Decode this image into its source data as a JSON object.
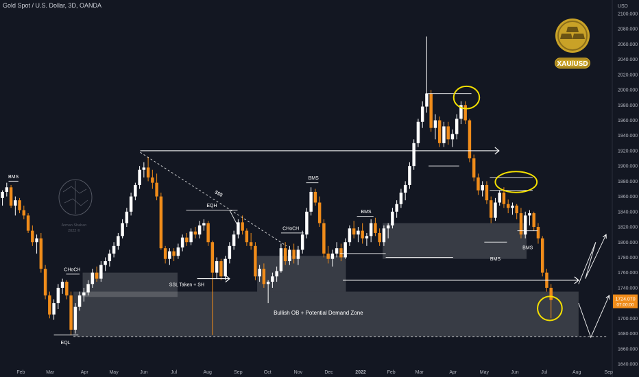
{
  "title": "Gold Spot / U.S. Dollar, 3D, OANDA",
  "currency": "USD",
  "logo": {
    "text": "XAU/USD",
    "coin_color": "#c9a227",
    "inner_color": "#8a6d1a"
  },
  "watermark": {
    "line1": "Arman Shaban",
    "line2": "2022 ©"
  },
  "colors": {
    "background": "#131722",
    "bull": "#ffffff",
    "bear": "#f08c1a",
    "zone": "#ffffff",
    "axis_text": "#b2b5be",
    "highlight": "#f5e000",
    "price_tag": "#f08c1a"
  },
  "chart_data": {
    "type": "candlestick",
    "ylabel": "USD",
    "ylim": [
      1640,
      2120
    ],
    "xlim": [
      0,
      100
    ],
    "y_ticks": [
      1640,
      1660,
      1680,
      1700,
      1720,
      1740,
      1760,
      1780,
      1800,
      1820,
      1840,
      1860,
      1880,
      1900,
      1920,
      1940,
      1960,
      1980,
      2000,
      2020,
      2040,
      2060,
      2080,
      2100
    ],
    "x_ticks": [
      {
        "label": "Feb",
        "x": 3.4
      },
      {
        "label": "Mar",
        "x": 8.2
      },
      {
        "label": "Apr",
        "x": 13.8
      },
      {
        "label": "May",
        "x": 18.6
      },
      {
        "label": "Jun",
        "x": 23.5
      },
      {
        "label": "Jul",
        "x": 28.4
      },
      {
        "label": "Aug",
        "x": 33.9
      },
      {
        "label": "Sep",
        "x": 38.9
      },
      {
        "label": "Oct",
        "x": 43.7
      },
      {
        "label": "Nov",
        "x": 48.7
      },
      {
        "label": "Dec",
        "x": 53.7
      },
      {
        "label": "2022",
        "x": 58.9
      },
      {
        "label": "Feb",
        "x": 63.9
      },
      {
        "label": "Mar",
        "x": 68.5
      },
      {
        "label": "Apr",
        "x": 74.0
      },
      {
        "label": "May",
        "x": 79.1
      },
      {
        "label": "Jun",
        "x": 84.1
      },
      {
        "label": "Jul",
        "x": 88.9
      },
      {
        "label": "Aug",
        "x": 94.2
      },
      {
        "label": "Sep",
        "x": 99.4
      }
    ],
    "last_price": {
      "value": "1724.070",
      "countdown": "07:00:00",
      "y": 1724.07
    },
    "candles": [
      [
        0.4,
        1858,
        1868,
        1848,
        1866
      ],
      [
        1.1,
        1866,
        1878,
        1860,
        1872
      ],
      [
        1.8,
        1872,
        1875,
        1845,
        1848
      ],
      [
        2.5,
        1848,
        1860,
        1835,
        1855
      ],
      [
        3.2,
        1855,
        1858,
        1838,
        1842
      ],
      [
        3.9,
        1842,
        1848,
        1830,
        1835
      ],
      [
        4.6,
        1835,
        1838,
        1812,
        1815
      ],
      [
        5.3,
        1815,
        1822,
        1795,
        1800
      ],
      [
        6.0,
        1800,
        1810,
        1785,
        1805
      ],
      [
        6.7,
        1805,
        1812,
        1760,
        1765
      ],
      [
        7.4,
        1765,
        1770,
        1725,
        1730
      ],
      [
        8.1,
        1730,
        1735,
        1700,
        1705
      ],
      [
        8.8,
        1705,
        1725,
        1698,
        1720
      ],
      [
        9.5,
        1720,
        1745,
        1712,
        1740
      ],
      [
        10.2,
        1740,
        1752,
        1732,
        1748
      ],
      [
        10.9,
        1748,
        1750,
        1725,
        1730
      ],
      [
        11.6,
        1730,
        1735,
        1678,
        1685
      ],
      [
        12.3,
        1685,
        1720,
        1680,
        1715
      ],
      [
        13.0,
        1715,
        1735,
        1710,
        1730
      ],
      [
        13.7,
        1730,
        1740,
        1722,
        1734
      ],
      [
        14.4,
        1734,
        1750,
        1730,
        1745
      ],
      [
        15.1,
        1745,
        1765,
        1740,
        1760
      ],
      [
        15.8,
        1760,
        1768,
        1748,
        1752
      ],
      [
        16.5,
        1752,
        1775,
        1748,
        1770
      ],
      [
        17.2,
        1770,
        1780,
        1762,
        1775
      ],
      [
        17.9,
        1775,
        1790,
        1768,
        1785
      ],
      [
        18.6,
        1785,
        1800,
        1780,
        1795
      ],
      [
        19.3,
        1795,
        1812,
        1790,
        1808
      ],
      [
        20.0,
        1808,
        1830,
        1805,
        1825
      ],
      [
        20.7,
        1825,
        1845,
        1820,
        1840
      ],
      [
        21.4,
        1840,
        1865,
        1835,
        1860
      ],
      [
        22.1,
        1860,
        1878,
        1855,
        1875
      ],
      [
        22.8,
        1875,
        1900,
        1870,
        1895
      ],
      [
        23.5,
        1895,
        1905,
        1885,
        1898
      ],
      [
        24.2,
        1898,
        1912,
        1880,
        1885
      ],
      [
        24.9,
        1885,
        1895,
        1870,
        1878
      ],
      [
        25.6,
        1878,
        1890,
        1855,
        1860
      ],
      [
        26.3,
        1860,
        1865,
        1790,
        1792
      ],
      [
        27.0,
        1792,
        1795,
        1772,
        1778
      ],
      [
        27.7,
        1778,
        1792,
        1770,
        1788
      ],
      [
        28.4,
        1788,
        1792,
        1775,
        1782
      ],
      [
        29.1,
        1782,
        1798,
        1778,
        1793
      ],
      [
        29.8,
        1793,
        1810,
        1788,
        1806
      ],
      [
        30.5,
        1806,
        1812,
        1795,
        1800
      ],
      [
        31.2,
        1800,
        1818,
        1796,
        1814
      ],
      [
        31.9,
        1814,
        1820,
        1805,
        1810
      ],
      [
        32.6,
        1810,
        1828,
        1805,
        1822
      ],
      [
        33.3,
        1822,
        1830,
        1815,
        1825
      ],
      [
        34.0,
        1825,
        1828,
        1795,
        1800
      ],
      [
        34.7,
        1800,
        1802,
        1678,
        1760
      ],
      [
        35.4,
        1760,
        1780,
        1752,
        1775
      ],
      [
        36.1,
        1775,
        1778,
        1750,
        1755
      ],
      [
        36.8,
        1755,
        1782,
        1750,
        1778
      ],
      [
        37.5,
        1778,
        1800,
        1772,
        1795
      ],
      [
        38.2,
        1795,
        1815,
        1790,
        1810
      ],
      [
        38.9,
        1810,
        1830,
        1805,
        1826
      ],
      [
        39.6,
        1826,
        1835,
        1810,
        1815
      ],
      [
        40.3,
        1815,
        1818,
        1795,
        1800
      ],
      [
        41.0,
        1800,
        1812,
        1790,
        1795
      ],
      [
        41.7,
        1795,
        1800,
        1750,
        1755
      ],
      [
        42.4,
        1755,
        1770,
        1748,
        1765
      ],
      [
        43.1,
        1765,
        1772,
        1740,
        1745
      ],
      [
        43.8,
        1745,
        1750,
        1720,
        1748
      ],
      [
        44.5,
        1748,
        1760,
        1740,
        1755
      ],
      [
        45.2,
        1755,
        1768,
        1748,
        1762
      ],
      [
        45.9,
        1762,
        1798,
        1760,
        1792
      ],
      [
        46.6,
        1792,
        1800,
        1770,
        1775
      ],
      [
        47.3,
        1775,
        1795,
        1770,
        1790
      ],
      [
        48.0,
        1790,
        1798,
        1772,
        1778
      ],
      [
        48.7,
        1778,
        1795,
        1770,
        1790
      ],
      [
        49.4,
        1790,
        1815,
        1785,
        1810
      ],
      [
        50.1,
        1810,
        1845,
        1805,
        1840
      ],
      [
        50.8,
        1840,
        1872,
        1835,
        1866
      ],
      [
        51.5,
        1866,
        1870,
        1848,
        1852
      ],
      [
        52.2,
        1852,
        1860,
        1820,
        1825
      ],
      [
        52.9,
        1825,
        1830,
        1780,
        1785
      ],
      [
        53.6,
        1785,
        1795,
        1772,
        1778
      ],
      [
        54.3,
        1778,
        1790,
        1768,
        1785
      ],
      [
        55.0,
        1785,
        1800,
        1780,
        1792
      ],
      [
        55.7,
        1792,
        1798,
        1775,
        1780
      ],
      [
        56.4,
        1780,
        1805,
        1778,
        1800
      ],
      [
        57.1,
        1800,
        1822,
        1795,
        1818
      ],
      [
        57.8,
        1818,
        1828,
        1805,
        1810
      ],
      [
        58.5,
        1810,
        1820,
        1800,
        1815
      ],
      [
        59.2,
        1815,
        1825,
        1798,
        1805
      ],
      [
        59.9,
        1805,
        1812,
        1795,
        1808
      ],
      [
        60.6,
        1808,
        1830,
        1800,
        1825
      ],
      [
        61.3,
        1825,
        1832,
        1808,
        1812
      ],
      [
        62.0,
        1812,
        1818,
        1795,
        1800
      ],
      [
        62.7,
        1800,
        1822,
        1795,
        1818
      ],
      [
        63.4,
        1818,
        1825,
        1805,
        1822
      ],
      [
        64.1,
        1822,
        1845,
        1818,
        1840
      ],
      [
        64.8,
        1840,
        1855,
        1832,
        1850
      ],
      [
        65.5,
        1850,
        1870,
        1845,
        1865
      ],
      [
        66.2,
        1865,
        1880,
        1855,
        1875
      ],
      [
        66.9,
        1875,
        1905,
        1870,
        1900
      ],
      [
        67.6,
        1900,
        1935,
        1895,
        1930
      ],
      [
        68.3,
        1930,
        1962,
        1925,
        1958
      ],
      [
        69.0,
        1958,
        1985,
        1950,
        1978
      ],
      [
        69.7,
        1978,
        2070,
        1970,
        1995
      ],
      [
        70.4,
        1995,
        2000,
        1945,
        1950
      ],
      [
        71.1,
        1950,
        1968,
        1935,
        1960
      ],
      [
        71.8,
        1960,
        1965,
        1925,
        1930
      ],
      [
        72.5,
        1930,
        1958,
        1925,
        1952
      ],
      [
        73.2,
        1952,
        1958,
        1928,
        1935
      ],
      [
        73.9,
        1935,
        1948,
        1925,
        1942
      ],
      [
        74.6,
        1942,
        1968,
        1935,
        1962
      ],
      [
        75.3,
        1962,
        1985,
        1955,
        1980
      ],
      [
        76.0,
        1980,
        1985,
        1955,
        1960
      ],
      [
        76.7,
        1960,
        1962,
        1905,
        1910
      ],
      [
        77.4,
        1910,
        1915,
        1880,
        1885
      ],
      [
        78.1,
        1885,
        1890,
        1862,
        1868
      ],
      [
        78.8,
        1868,
        1880,
        1860,
        1875
      ],
      [
        79.5,
        1875,
        1880,
        1850,
        1855
      ],
      [
        80.2,
        1855,
        1860,
        1825,
        1832
      ],
      [
        80.9,
        1832,
        1858,
        1828,
        1852
      ],
      [
        81.6,
        1852,
        1868,
        1848,
        1865
      ],
      [
        82.3,
        1865,
        1872,
        1845,
        1850
      ],
      [
        83.0,
        1850,
        1856,
        1838,
        1845
      ],
      [
        83.7,
        1845,
        1852,
        1836,
        1848
      ],
      [
        84.4,
        1848,
        1850,
        1830,
        1838
      ],
      [
        85.1,
        1838,
        1845,
        1805,
        1810
      ],
      [
        85.8,
        1810,
        1840,
        1805,
        1835
      ],
      [
        86.5,
        1835,
        1842,
        1822,
        1838
      ],
      [
        87.2,
        1838,
        1840,
        1815,
        1820
      ],
      [
        87.9,
        1820,
        1825,
        1798,
        1805
      ],
      [
        88.6,
        1805,
        1808,
        1755,
        1760
      ],
      [
        89.3,
        1760,
        1765,
        1735,
        1740
      ],
      [
        90.0,
        1740,
        1745,
        1700,
        1724
      ]
    ],
    "zones": [
      {
        "x1": 12.0,
        "x2": 94.5,
        "y1": 1735,
        "y2": 1676
      },
      {
        "x1": 13.5,
        "x2": 29.0,
        "y1": 1760,
        "y2": 1728
      },
      {
        "x1": 42.0,
        "x2": 56.5,
        "y1": 1782,
        "y2": 1735
      },
      {
        "x1": 62.5,
        "x2": 86.0,
        "y1": 1825,
        "y2": 1778
      }
    ],
    "arrows": [
      {
        "x1": 22.9,
        "y1": 1920,
        "x2": 81.5,
        "y2": 1920
      },
      {
        "x1": 32.2,
        "y1": 1752,
        "x2": 37.5,
        "y2": 1752
      },
      {
        "x1": 56.0,
        "y1": 1750,
        "x2": 94.5,
        "y2": 1750
      }
    ],
    "lines": [
      {
        "x1": 1.4,
        "y1": 1880,
        "x2": 3.0,
        "y2": 1880
      },
      {
        "x1": 10.8,
        "y1": 1758,
        "x2": 13.0,
        "y2": 1758
      },
      {
        "x1": 8.8,
        "y1": 1678,
        "x2": 12.8,
        "y2": 1678
      },
      {
        "x1": 30.4,
        "y1": 1842,
        "x2": 38.8,
        "y2": 1842
      },
      {
        "x1": 37.5,
        "y1": 1842,
        "x2": 38.8,
        "y2": 1822
      },
      {
        "x1": 45.9,
        "y1": 1812,
        "x2": 49.6,
        "y2": 1812
      },
      {
        "x1": 50.0,
        "y1": 1878,
        "x2": 52.0,
        "y2": 1878
      },
      {
        "x1": 58.3,
        "y1": 1834,
        "x2": 61.0,
        "y2": 1834
      },
      {
        "x1": 79.1,
        "y1": 1800,
        "x2": 82.8,
        "y2": 1800
      },
      {
        "x1": 84.5,
        "y1": 1815,
        "x2": 87.8,
        "y2": 1815
      },
      {
        "x1": 69.5,
        "y1": 1995,
        "x2": 77.0,
        "y2": 1995
      },
      {
        "x1": 70.0,
        "y1": 1900,
        "x2": 75.0,
        "y2": 1900
      },
      {
        "x1": 80.0,
        "y1": 1885,
        "x2": 87.0,
        "y2": 1885
      },
      {
        "x1": 80.0,
        "y1": 1868,
        "x2": 87.0,
        "y2": 1868
      },
      {
        "x1": 55.5,
        "y1": 1785,
        "x2": 63.0,
        "y2": 1785
      },
      {
        "x1": 63.0,
        "y1": 1780,
        "x2": 74.0,
        "y2": 1780
      }
    ],
    "dashed_lines": [
      {
        "x1": 22.9,
        "y1": 1918,
        "x2": 46.8,
        "y2": 1795
      },
      {
        "x1": 12.0,
        "y1": 1676,
        "x2": 99.3,
        "y2": 1676
      }
    ],
    "projection": [
      [
        94.5,
        1745
      ],
      [
        97.3,
        1800
      ],
      [
        95.6,
        1752
      ],
      [
        99.0,
        1810
      ]
    ],
    "projection2": [
      [
        94.5,
        1720
      ],
      [
        96.5,
        1675
      ],
      [
        99.5,
        1730
      ]
    ],
    "circles": [
      {
        "x": 76.2,
        "y": 1990,
        "rx": 2.1,
        "ry": 28
      },
      {
        "x": 84.3,
        "y": 1879,
        "rx": 3.4,
        "ry": 26
      },
      {
        "x": 89.8,
        "y": 1713,
        "rx": 2.0,
        "ry": 30
      }
    ],
    "labels": [
      {
        "text": "BMS",
        "x": 2.2,
        "y": 1884
      },
      {
        "text": "CHoCH",
        "x": 11.8,
        "y": 1762
      },
      {
        "text": "EQL",
        "x": 10.7,
        "y": 1666
      },
      {
        "text": "EQH",
        "x": 34.6,
        "y": 1846
      },
      {
        "text": "$$$",
        "x": 35.6,
        "y": 1862,
        "rotate": 28
      },
      {
        "text": "SSL Taken + SH",
        "x": 30.5,
        "y": 1742
      },
      {
        "text": "CHoCH",
        "x": 47.5,
        "y": 1816
      },
      {
        "text": "BMS",
        "x": 51.2,
        "y": 1882
      },
      {
        "text": "BMS",
        "x": 59.8,
        "y": 1838
      },
      {
        "text": "BMS",
        "x": 80.9,
        "y": 1776
      },
      {
        "text": "BMS",
        "x": 86.2,
        "y": 1791
      },
      {
        "text": "Bullish OB + Potential Demand Zone",
        "x": 52.0,
        "y": 1705
      }
    ]
  }
}
